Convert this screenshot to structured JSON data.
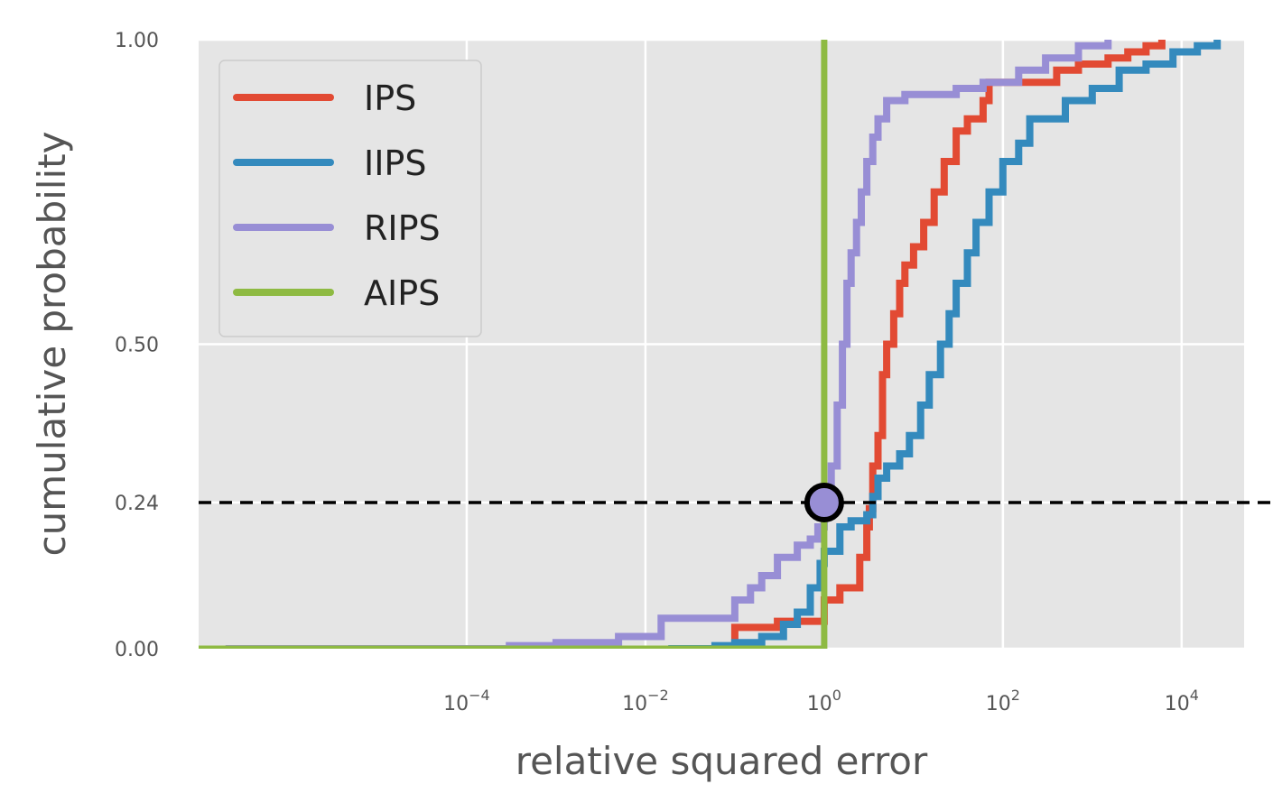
{
  "chart_data": {
    "type": "line",
    "xlabel": "relative squared error",
    "ylabel": "cumulative probability",
    "x_scale": "log",
    "xlim": [
      1e-07,
      50000
    ],
    "ylim": [
      0,
      1
    ],
    "x_ticks": [
      {
        "value": 0.0001,
        "base": "10",
        "exp": "−4"
      },
      {
        "value": 0.01,
        "base": "10",
        "exp": "−2"
      },
      {
        "value": 1,
        "base": "10",
        "exp": "0"
      },
      {
        "value": 100,
        "base": "10",
        "exp": "2"
      },
      {
        "value": 10000,
        "base": "10",
        "exp": "4"
      }
    ],
    "y_ticks": [
      {
        "value": 0.0,
        "label": "0.00"
      },
      {
        "value": 0.24,
        "label": "0.24"
      },
      {
        "value": 0.5,
        "label": "0.50"
      },
      {
        "value": 1.0,
        "label": "1.00"
      }
    ],
    "grid": true,
    "legend": "top-left",
    "reference_line": {
      "y": 0.24,
      "style": "dashed",
      "color": "#000000"
    },
    "marker_point": {
      "x": 1.0,
      "y": 0.24,
      "color": "#988ED5"
    },
    "series": [
      {
        "name": "IPS",
        "color": "#E24A33",
        "points": [
          [
            0.1,
            0.0
          ],
          [
            0.1,
            0.035
          ],
          [
            0.3,
            0.035
          ],
          [
            0.3,
            0.045
          ],
          [
            1,
            0.045
          ],
          [
            1,
            0.08
          ],
          [
            1.5,
            0.08
          ],
          [
            1.5,
            0.1
          ],
          [
            2.2,
            0.1
          ],
          [
            2.5,
            0.15
          ],
          [
            3,
            0.2
          ],
          [
            3.2,
            0.23
          ],
          [
            3.5,
            0.3
          ],
          [
            4,
            0.35
          ],
          [
            4.5,
            0.45
          ],
          [
            5,
            0.5
          ],
          [
            6,
            0.55
          ],
          [
            7,
            0.6
          ],
          [
            8,
            0.63
          ],
          [
            10,
            0.66
          ],
          [
            13,
            0.7
          ],
          [
            17,
            0.75
          ],
          [
            22,
            0.8
          ],
          [
            30,
            0.85
          ],
          [
            40,
            0.87
          ],
          [
            60,
            0.9
          ],
          [
            70,
            0.93
          ],
          [
            200,
            0.93
          ],
          [
            400,
            0.95
          ],
          [
            700,
            0.96
          ],
          [
            1500,
            0.97
          ],
          [
            2500,
            0.98
          ],
          [
            4000,
            0.99
          ],
          [
            6000,
            1.0
          ]
        ]
      },
      {
        "name": "IIPS",
        "color": "#348ABD",
        "points": [
          [
            0.018,
            0.0
          ],
          [
            0.06,
            0.005
          ],
          [
            0.1,
            0.01
          ],
          [
            0.2,
            0.02
          ],
          [
            0.35,
            0.04
          ],
          [
            0.5,
            0.06
          ],
          [
            0.7,
            0.1
          ],
          [
            0.9,
            0.14
          ],
          [
            1,
            0.16
          ],
          [
            1.5,
            0.2
          ],
          [
            2,
            0.21
          ],
          [
            3,
            0.22
          ],
          [
            3.5,
            0.25
          ],
          [
            4,
            0.28
          ],
          [
            5,
            0.3
          ],
          [
            7,
            0.32
          ],
          [
            9,
            0.35
          ],
          [
            12,
            0.4
          ],
          [
            15,
            0.45
          ],
          [
            20,
            0.5
          ],
          [
            25,
            0.55
          ],
          [
            30,
            0.6
          ],
          [
            40,
            0.65
          ],
          [
            50,
            0.7
          ],
          [
            70,
            0.75
          ],
          [
            100,
            0.8
          ],
          [
            150,
            0.83
          ],
          [
            200,
            0.87
          ],
          [
            300,
            0.87
          ],
          [
            500,
            0.9
          ],
          [
            1000,
            0.92
          ],
          [
            2000,
            0.95
          ],
          [
            4000,
            0.96
          ],
          [
            8000,
            0.98
          ],
          [
            15000,
            0.99
          ],
          [
            25000,
            1.0
          ]
        ]
      },
      {
        "name": "RIPS",
        "color": "#988ED5",
        "points": [
          [
            2e-07,
            0.0
          ],
          [
            1e-05,
            0.0
          ],
          [
            0.00025,
            0.0
          ],
          [
            0.0003,
            0.005
          ],
          [
            0.001,
            0.01
          ],
          [
            0.005,
            0.02
          ],
          [
            0.015,
            0.05
          ],
          [
            0.05,
            0.05
          ],
          [
            0.1,
            0.08
          ],
          [
            0.15,
            0.1
          ],
          [
            0.2,
            0.12
          ],
          [
            0.3,
            0.15
          ],
          [
            0.5,
            0.17
          ],
          [
            0.7,
            0.18
          ],
          [
            0.85,
            0.2
          ],
          [
            1,
            0.24
          ],
          [
            1.2,
            0.3
          ],
          [
            1.4,
            0.4
          ],
          [
            1.6,
            0.5
          ],
          [
            1.8,
            0.6
          ],
          [
            2.0,
            0.65
          ],
          [
            2.3,
            0.7
          ],
          [
            2.6,
            0.75
          ],
          [
            3,
            0.8
          ],
          [
            3.5,
            0.84
          ],
          [
            4,
            0.87
          ],
          [
            5,
            0.9
          ],
          [
            8,
            0.91
          ],
          [
            30,
            0.92
          ],
          [
            60,
            0.93
          ],
          [
            150,
            0.95
          ],
          [
            300,
            0.97
          ],
          [
            700,
            0.99
          ],
          [
            1500,
            1.0
          ]
        ]
      },
      {
        "name": "AIPS",
        "color": "#8EBA42",
        "points": [
          [
            1e-07,
            0.0
          ],
          [
            1.0,
            0.0
          ],
          [
            1.0,
            1.0
          ]
        ]
      }
    ]
  }
}
